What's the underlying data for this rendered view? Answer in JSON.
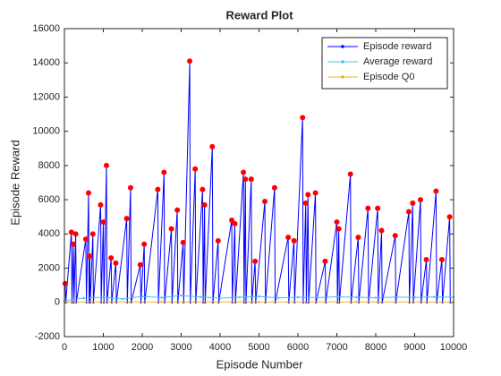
{
  "chart_data": {
    "type": "line",
    "title": "Reward Plot",
    "x_label": "Episode Number",
    "y_label": "Episode Reward",
    "xlim": [
      0,
      10000
    ],
    "xticks": [
      0,
      1000,
      2000,
      3000,
      4000,
      5000,
      6000,
      7000,
      8000,
      9000,
      10000
    ],
    "ylim": [
      -2000,
      16000
    ],
    "yticks": [
      -2000,
      0,
      2000,
      4000,
      6000,
      8000,
      10000,
      12000,
      14000,
      16000
    ],
    "legend": "upper right",
    "series": [
      {
        "name": "Episode reward",
        "color": "#0000ff",
        "peak_marker_color": "#ff0000",
        "x": [
          20,
          35,
          180,
          195,
          230,
          245,
          290,
          305,
          550,
          565,
          620,
          635,
          650,
          665,
          730,
          745,
          930,
          945,
          1000,
          1015,
          1080,
          1095,
          1200,
          1215,
          1320,
          1335,
          1600,
          1615,
          1700,
          1715,
          1950,
          1965,
          2050,
          2065,
          2400,
          2415,
          2560,
          2575,
          2750,
          2765,
          2900,
          2915,
          3050,
          3065,
          3220,
          3235,
          3360,
          3375,
          3550,
          3565,
          3600,
          3615,
          3800,
          3815,
          3950,
          3965,
          4300,
          4315,
          4380,
          4395,
          4600,
          4615,
          4650,
          4665,
          4800,
          4815,
          4900,
          4915,
          5150,
          5165,
          5400,
          5415,
          5750,
          5765,
          5900,
          5915,
          6120,
          6135,
          6200,
          6215,
          6260,
          6275,
          6450,
          6465,
          6700,
          6715,
          7000,
          7015,
          7050,
          7065,
          7350,
          7365,
          7550,
          7565,
          7800,
          7815,
          8050,
          8065,
          8150,
          8165,
          8500,
          8515,
          8850,
          8865,
          8950,
          8965,
          9150,
          9165,
          9300,
          9315,
          9550,
          9565,
          9700,
          9715,
          9900,
          9915
        ],
        "values": [
          1100,
          0,
          4100,
          0,
          3400,
          0,
          4000,
          0,
          3700,
          0,
          6400,
          0,
          2700,
          0,
          4000,
          0,
          5700,
          0,
          4700,
          0,
          8000,
          0,
          2600,
          0,
          2300,
          0,
          4900,
          0,
          6700,
          0,
          2200,
          0,
          3400,
          0,
          6600,
          0,
          7600,
          0,
          4300,
          0,
          5400,
          0,
          3500,
          0,
          14100,
          0,
          7800,
          0,
          6600,
          0,
          5700,
          0,
          9100,
          0,
          3600,
          0,
          4800,
          0,
          4600,
          0,
          7600,
          0,
          7200,
          0,
          7200,
          0,
          2400,
          0,
          5900,
          0,
          6700,
          0,
          3800,
          0,
          3600,
          0,
          10800,
          0,
          5800,
          0,
          6300,
          0,
          6400,
          0,
          2400,
          0,
          4700,
          0,
          4300,
          0,
          7500,
          0,
          3800,
          0,
          5500,
          0,
          5500,
          0,
          4200,
          0,
          3900,
          0,
          5300,
          0,
          5800,
          0,
          6000,
          0,
          2500,
          0,
          6500,
          0,
          2500,
          0,
          5000,
          0
        ]
      },
      {
        "name": "Average reward",
        "color": "#4dbeee",
        "x": [
          0,
          500,
          1000,
          1500,
          2000,
          2500,
          3000,
          3500,
          4000,
          4500,
          5000,
          5500,
          6000,
          6500,
          7000,
          7500,
          8000,
          8500,
          9000,
          9500,
          10000
        ],
        "values": [
          100,
          250,
          300,
          200,
          350,
          280,
          400,
          320,
          250,
          300,
          350,
          260,
          300,
          280,
          330,
          300,
          270,
          310,
          290,
          320,
          300
        ]
      },
      {
        "name": "Episode Q0",
        "color": "#edb120",
        "x": [
          0,
          2500,
          5000,
          7500,
          10000
        ],
        "values": [
          20,
          30,
          25,
          30,
          30
        ]
      }
    ]
  }
}
